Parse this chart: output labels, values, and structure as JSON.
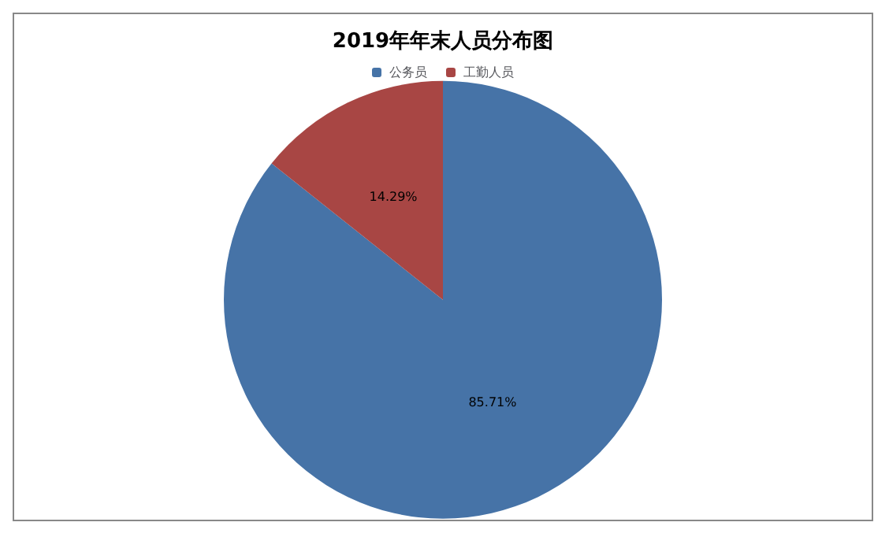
{
  "chart_data": {
    "type": "pie",
    "title": "2019年年末人员分布图",
    "categories": [
      "公务员",
      "工勤人员"
    ],
    "values": [
      85.71,
      14.29
    ],
    "colors": [
      "#4673a7",
      "#a84644"
    ],
    "value_labels": [
      "85.71%",
      "14.29%"
    ],
    "legend": "top"
  }
}
